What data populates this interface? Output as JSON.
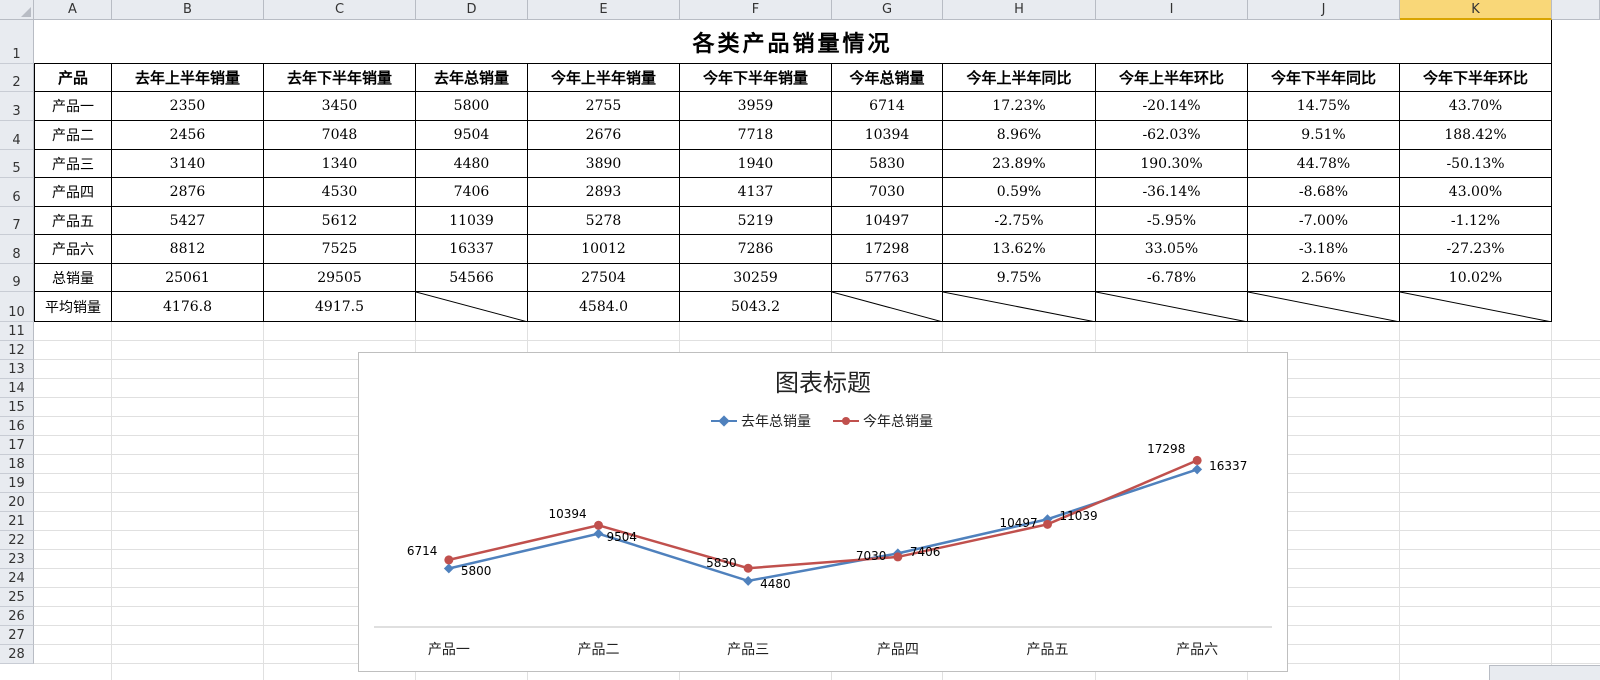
{
  "columns": [
    "A",
    "B",
    "C",
    "D",
    "E",
    "F",
    "G",
    "H",
    "I",
    "J",
    "K"
  ],
  "active_column": "K",
  "rows": [
    "1",
    "2",
    "3",
    "4",
    "5",
    "6",
    "7",
    "8",
    "9",
    "10",
    "11",
    "12",
    "13",
    "14",
    "15",
    "16",
    "17",
    "18",
    "19",
    "20",
    "21",
    "22",
    "23",
    "24",
    "25",
    "26",
    "27",
    "28"
  ],
  "sheet_title": "各类产品销量情况",
  "table": {
    "headers": [
      "产品",
      "去年上半年销量",
      "去年下半年销量",
      "去年总销量",
      "今年上半年销量",
      "今年下半年销量",
      "今年总销量",
      "今年上半年同比",
      "今年上半年环比",
      "今年下半年同比",
      "今年下半年环比"
    ],
    "rows": [
      [
        "产品一",
        "2350",
        "3450",
        "5800",
        "2755",
        "3959",
        "6714",
        "17.23%",
        "-20.14%",
        "14.75%",
        "43.70%"
      ],
      [
        "产品二",
        "2456",
        "7048",
        "9504",
        "2676",
        "7718",
        "10394",
        "8.96%",
        "-62.03%",
        "9.51%",
        "188.42%"
      ],
      [
        "产品三",
        "3140",
        "1340",
        "4480",
        "3890",
        "1940",
        "5830",
        "23.89%",
        "190.30%",
        "44.78%",
        "-50.13%"
      ],
      [
        "产品四",
        "2876",
        "4530",
        "7406",
        "2893",
        "4137",
        "7030",
        "0.59%",
        "-36.14%",
        "-8.68%",
        "43.00%"
      ],
      [
        "产品五",
        "5427",
        "5612",
        "11039",
        "5278",
        "5219",
        "10497",
        "-2.75%",
        "-5.95%",
        "-7.00%",
        "-1.12%"
      ],
      [
        "产品六",
        "8812",
        "7525",
        "16337",
        "10012",
        "7286",
        "17298",
        "13.62%",
        "33.05%",
        "-3.18%",
        "-27.23%"
      ],
      [
        "总销量",
        "25061",
        "29505",
        "54566",
        "27504",
        "30259",
        "57763",
        "9.75%",
        "-6.78%",
        "2.56%",
        "10.02%"
      ],
      [
        "平均销量",
        "4176.8",
        "4917.5",
        "",
        "4584.0",
        "5043.2",
        "",
        "",
        "",
        "",
        ""
      ]
    ],
    "diagonal_cells": [
      3,
      6,
      7,
      8,
      9,
      10
    ]
  },
  "chart_data": {
    "type": "line",
    "title": "图表标题",
    "categories": [
      "产品一",
      "产品二",
      "产品三",
      "产品四",
      "产品五",
      "产品六"
    ],
    "series": [
      {
        "name": "去年总销量",
        "values": [
          5800,
          9504,
          4480,
          7406,
          11039,
          16337
        ],
        "color": "#4f81bd",
        "marker": "diamond"
      },
      {
        "name": "今年总销量",
        "values": [
          6714,
          10394,
          5830,
          7030,
          10497,
          17298
        ],
        "color": "#c0504d",
        "marker": "circle"
      }
    ],
    "legend_position": "top",
    "grid": false,
    "y_axis_visible": false
  }
}
